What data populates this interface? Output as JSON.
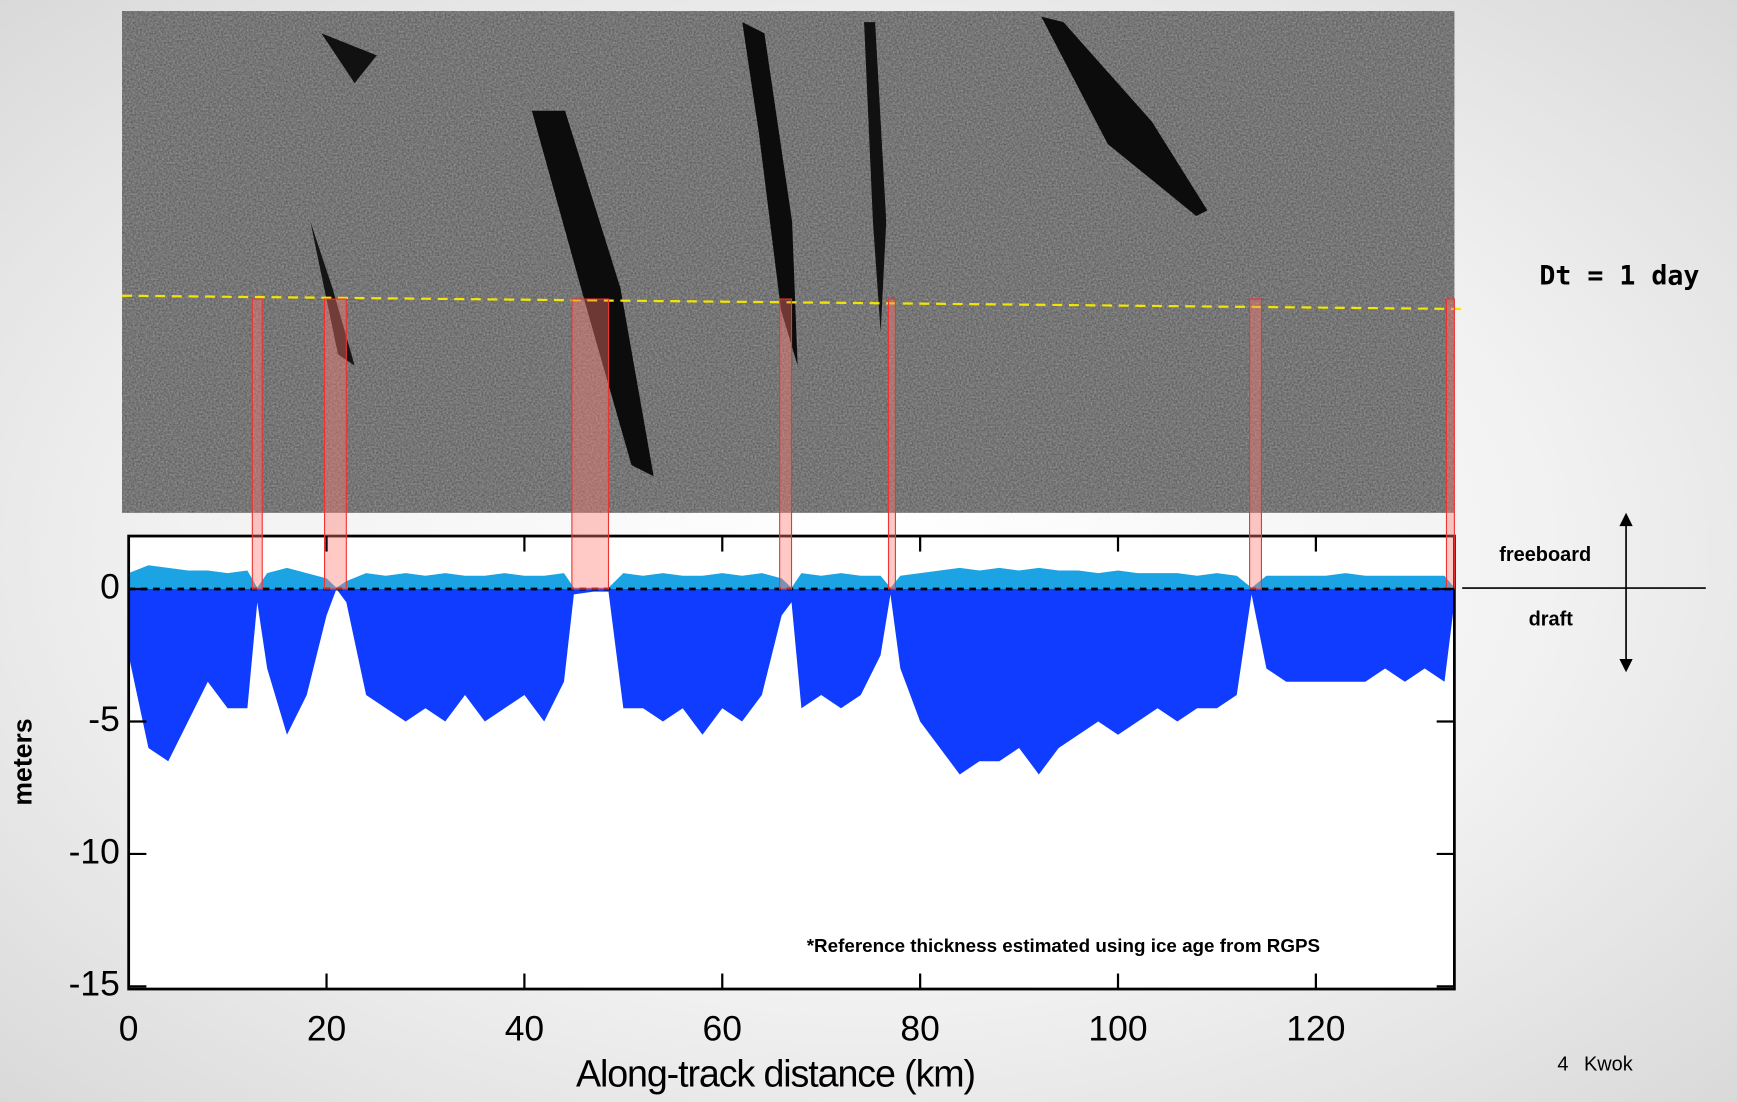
{
  "label": "Dt = 1 day",
  "diagram": {
    "up": "freeboard",
    "down": "draft"
  },
  "footer": {
    "page": "4",
    "author": "Kwok"
  },
  "chart_data": {
    "type": "area",
    "xlabel": "Along-track distance (km)",
    "ylabel": "meters",
    "annotation": "*Reference thickness estimated using ice age from RGPS",
    "x": [
      0,
      2,
      4,
      6,
      8,
      10,
      12,
      13,
      14,
      16,
      18,
      20,
      21,
      22,
      24,
      26,
      28,
      30,
      32,
      34,
      36,
      38,
      40,
      42,
      44,
      45,
      47,
      48.5,
      50,
      52,
      54,
      56,
      58,
      60,
      62,
      64,
      66,
      67,
      68,
      70,
      72,
      74,
      76,
      77,
      78,
      80,
      82,
      84,
      86,
      88,
      90,
      92,
      94,
      96,
      98,
      100,
      102,
      104,
      106,
      108,
      110,
      112,
      113.5,
      115,
      117,
      119,
      121,
      123,
      125,
      127,
      129,
      131,
      133,
      134
    ],
    "series": [
      {
        "name": "freeboard",
        "color": "#1ca3e3",
        "values": [
          0.6,
          0.9,
          0.8,
          0.7,
          0.7,
          0.6,
          0.7,
          0.05,
          0.6,
          0.8,
          0.6,
          0.4,
          0.05,
          0.3,
          0.6,
          0.5,
          0.6,
          0.5,
          0.6,
          0.5,
          0.5,
          0.6,
          0.5,
          0.5,
          0.6,
          0.05,
          0.05,
          0.05,
          0.6,
          0.5,
          0.6,
          0.5,
          0.5,
          0.6,
          0.5,
          0.6,
          0.4,
          0.05,
          0.6,
          0.5,
          0.6,
          0.5,
          0.5,
          0.05,
          0.5,
          0.6,
          0.7,
          0.8,
          0.7,
          0.8,
          0.7,
          0.8,
          0.7,
          0.7,
          0.6,
          0.7,
          0.6,
          0.6,
          0.6,
          0.5,
          0.6,
          0.5,
          0.05,
          0.5,
          0.5,
          0.5,
          0.5,
          0.6,
          0.5,
          0.5,
          0.5,
          0.5,
          0.5,
          0.05
        ]
      },
      {
        "name": "draft",
        "color": "#0f3cff",
        "values": [
          -2.5,
          -6,
          -6.5,
          -5,
          -3.5,
          -4.5,
          -4.5,
          -0.5,
          -3,
          -5.5,
          -4,
          -1,
          0,
          -0.5,
          -4,
          -4.5,
          -5,
          -4.5,
          -5,
          -4,
          -5,
          -4.5,
          -4,
          -5,
          -3.5,
          -0.2,
          -0.1,
          -0.1,
          -4.5,
          -4.5,
          -5,
          -4.5,
          -5.5,
          -4.5,
          -5,
          -4,
          -1,
          -0.5,
          -4.5,
          -4,
          -4.5,
          -4,
          -2.5,
          -0.2,
          -3,
          -5,
          -6,
          -7,
          -6.5,
          -6.5,
          -6,
          -7,
          -6,
          -5.5,
          -5,
          -5.5,
          -5,
          -4.5,
          -5,
          -4.5,
          -4.5,
          -4,
          -0.2,
          -3,
          -3.5,
          -3.5,
          -3.5,
          -3.5,
          -3.5,
          -3,
          -3.5,
          -3,
          -3.5,
          -0.5
        ]
      }
    ],
    "leads": [
      [
        12.5,
        13.5
      ],
      [
        19.8,
        22
      ],
      [
        44.8,
        48.5
      ],
      [
        65.8,
        67
      ],
      [
        76.8,
        77.5
      ],
      [
        113.3,
        114.5
      ],
      [
        133.2,
        134
      ]
    ],
    "xlim": [
      0,
      134
    ],
    "ylim": [
      -15.1,
      2
    ],
    "xticks": [
      0,
      20,
      40,
      60,
      80,
      100,
      120
    ],
    "yticks": [
      0,
      -5,
      -10,
      -15
    ]
  }
}
